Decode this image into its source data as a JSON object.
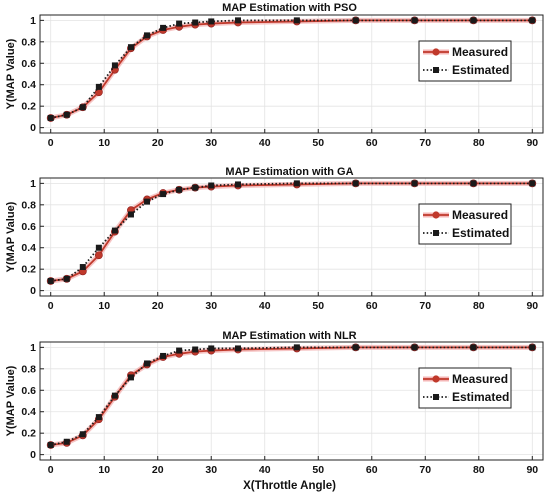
{
  "figure": {
    "xlabel": "X(Throttle Angle)",
    "marker_colors": {
      "measured": "#c0392b",
      "estimated": "#1a1a1a",
      "measured_halo": "#f4b6b6"
    }
  },
  "chart_data": [
    {
      "type": "line",
      "title": "MAP Estimation with PSO",
      "xlabel": "",
      "ylabel": "Y(MAP Value)",
      "xlim": [
        -2,
        92
      ],
      "ylim": [
        -0.05,
        1.05
      ],
      "xticks": [
        0,
        10,
        20,
        30,
        40,
        50,
        60,
        70,
        80,
        90
      ],
      "yticks": [
        0,
        0.2,
        0.4,
        0.6,
        0.8,
        1
      ],
      "ytick_labels": [
        "0",
        "0.2",
        "0.4",
        "0.6",
        "0.8",
        "1"
      ],
      "grid": true,
      "legend_position": "right",
      "x": [
        0,
        3,
        6,
        9,
        12,
        15,
        18,
        21,
        24,
        27,
        30,
        35,
        46,
        57,
        68,
        79,
        90
      ],
      "series": [
        {
          "name": "Measured",
          "style": "solid-circle",
          "color": "#c0392b",
          "values": [
            0.09,
            0.12,
            0.19,
            0.33,
            0.54,
            0.74,
            0.85,
            0.91,
            0.94,
            0.96,
            0.97,
            0.98,
            0.99,
            1.0,
            1.0,
            1.0,
            1.0
          ]
        },
        {
          "name": "Estimated",
          "style": "dotted-square",
          "color": "#1a1a1a",
          "values": [
            0.09,
            0.12,
            0.19,
            0.38,
            0.58,
            0.75,
            0.86,
            0.93,
            0.97,
            0.98,
            0.99,
            1.0,
            1.0,
            1.0,
            1.0,
            1.0,
            1.0
          ]
        }
      ]
    },
    {
      "type": "line",
      "title": "MAP Estimation with GA",
      "xlabel": "",
      "ylabel": "Y(MAP Value)",
      "xlim": [
        -2,
        92
      ],
      "ylim": [
        -0.05,
        1.05
      ],
      "xticks": [
        0,
        10,
        20,
        30,
        40,
        50,
        60,
        70,
        80,
        90
      ],
      "yticks": [
        0,
        0.2,
        0.4,
        0.6,
        0.8,
        1
      ],
      "ytick_labels": [
        "0",
        "0.2",
        "0.4",
        "0.6",
        "0.8",
        "1"
      ],
      "grid": true,
      "legend_position": "right",
      "x": [
        0,
        3,
        6,
        9,
        12,
        15,
        18,
        21,
        24,
        27,
        30,
        35,
        46,
        57,
        68,
        79,
        90
      ],
      "series": [
        {
          "name": "Measured",
          "style": "solid-circle",
          "color": "#c0392b",
          "values": [
            0.09,
            0.11,
            0.18,
            0.33,
            0.55,
            0.75,
            0.85,
            0.91,
            0.94,
            0.96,
            0.97,
            0.98,
            0.99,
            1.0,
            1.0,
            1.0,
            1.0
          ]
        },
        {
          "name": "Estimated",
          "style": "dotted-square",
          "color": "#1a1a1a",
          "values": [
            0.09,
            0.11,
            0.22,
            0.4,
            0.56,
            0.71,
            0.83,
            0.9,
            0.94,
            0.96,
            0.98,
            0.99,
            1.0,
            1.0,
            1.0,
            1.0,
            1.0
          ]
        }
      ]
    },
    {
      "type": "line",
      "title": "MAP Estimation with NLR",
      "xlabel": "X(Throttle Angle)",
      "ylabel": "Y(MAP Value)",
      "xlim": [
        -2,
        92
      ],
      "ylim": [
        -0.05,
        1.05
      ],
      "xticks": [
        0,
        10,
        20,
        30,
        40,
        50,
        60,
        70,
        80,
        90
      ],
      "yticks": [
        0,
        0.2,
        0.4,
        0.6,
        0.8,
        1
      ],
      "ytick_labels": [
        "0",
        "0.2",
        "0.4",
        "0.6",
        "0.8",
        "1"
      ],
      "grid": true,
      "legend_position": "right",
      "x": [
        0,
        3,
        6,
        9,
        12,
        15,
        18,
        21,
        24,
        27,
        30,
        35,
        46,
        57,
        68,
        79,
        90
      ],
      "series": [
        {
          "name": "Measured",
          "style": "solid-circle",
          "color": "#c0392b",
          "values": [
            0.09,
            0.11,
            0.18,
            0.33,
            0.54,
            0.74,
            0.84,
            0.91,
            0.94,
            0.96,
            0.97,
            0.98,
            0.99,
            1.0,
            1.0,
            1.0,
            1.0
          ]
        },
        {
          "name": "Estimated",
          "style": "dotted-square",
          "color": "#1a1a1a",
          "values": [
            0.09,
            0.12,
            0.19,
            0.35,
            0.55,
            0.72,
            0.85,
            0.92,
            0.97,
            0.98,
            0.99,
            0.99,
            1.0,
            1.0,
            1.0,
            1.0,
            1.0
          ]
        }
      ]
    }
  ]
}
